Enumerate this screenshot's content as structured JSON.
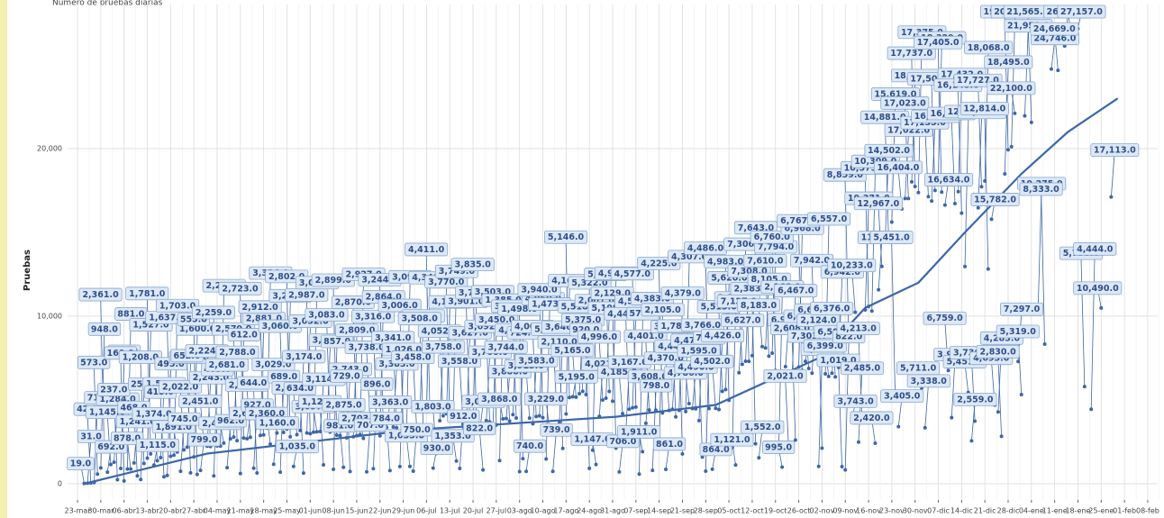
{
  "chart_data": {
    "type": "scatter",
    "subtitle": "Número de pruebas diarias",
    "y_label": "Pruebas",
    "color": "#3d67a8",
    "label_fill": "#dde8f6",
    "label_stroke": "#86a7d0",
    "label_color": "#2c4f8c",
    "grid": true,
    "xlim": [
      "20-mar",
      "11-feb"
    ],
    "ylim": [
      -970,
      28600
    ],
    "yticks": [
      {
        "value": 0,
        "label": "0"
      },
      {
        "value": 10000,
        "label": "10,000"
      },
      {
        "value": 20000,
        "label": "20,000"
      }
    ],
    "xticks": [
      "23-mar",
      "30-mar",
      "06-abr",
      "13-abr",
      "20-abr",
      "27-abr",
      "04-may",
      "11-may",
      "18-may",
      "25-may",
      "01-jun",
      "08-jun",
      "15-jun",
      "22-jun",
      "29-jun",
      "06-jul",
      "13-jul",
      "20-jul",
      "27-jul",
      "03-ago",
      "10-ago",
      "17-ago",
      "24-ago",
      "31-ago",
      "07-sep",
      "14-sep",
      "21-sep",
      "28-sep",
      "05-oct",
      "12-oct",
      "19-oct",
      "26-oct",
      "02-nov",
      "09-nov",
      "16-nov",
      "23-nov",
      "30-nov",
      "07-dic",
      "14-dic",
      "21-dic",
      "28-dic",
      "04-ene",
      "11-ene",
      "18-ene",
      "25-ene",
      "01-feb",
      "08-feb"
    ],
    "x": [
      "25-mar",
      "26-mar",
      "27-mar",
      "28-mar",
      "29-mar",
      "30-mar",
      "31-mar",
      "01-abr",
      "02-abr",
      "03-abr",
      "04-abr",
      "05-abr",
      "06-abr",
      "07-abr",
      "08-abr",
      "09-abr",
      "10-abr",
      "11-abr",
      "12-abr",
      "13-abr",
      "14-abr",
      "15-abr",
      "16-abr",
      "17-abr",
      "18-abr",
      "19-abr",
      "20-abr",
      "21-abr",
      "22-abr",
      "23-abr",
      "24-abr",
      "25-abr",
      "26-abr",
      "27-abr",
      "28-abr",
      "29-abr",
      "30-abr",
      "01-may",
      "02-may",
      "03-may",
      "04-may",
      "05-may",
      "06-may",
      "07-may",
      "08-may",
      "09-may",
      "10-may",
      "11-may",
      "12-may",
      "13-may",
      "14-may",
      "15-may",
      "16-may",
      "17-may",
      "18-may",
      "19-may",
      "20-may",
      "21-may",
      "22-may",
      "23-may",
      "24-may",
      "25-may",
      "26-may",
      "27-may",
      "28-may",
      "29-may",
      "30-may",
      "31-may",
      "01-jun",
      "02-jun",
      "03-jun",
      "04-jun",
      "05-jun",
      "06-jun",
      "07-jun",
      "08-jun",
      "09-jun",
      "10-jun",
      "11-jun",
      "12-jun",
      "13-jun",
      "14-jun",
      "15-jun",
      "16-jun",
      "17-jun",
      "18-jun",
      "19-jun",
      "20-jun",
      "21-jun",
      "22-jun",
      "23-jun",
      "24-jun",
      "25-jun",
      "26-jun",
      "27-jun",
      "28-jun",
      "29-jun",
      "30-jun",
      "01-jul",
      "02-jul",
      "03-jul",
      "04-jul",
      "05-jul",
      "06-jul",
      "07-jul",
      "08-jul",
      "09-jul",
      "10-jul",
      "11-jul",
      "12-jul",
      "13-jul",
      "14-jul",
      "15-jul",
      "16-jul",
      "17-jul",
      "18-jul",
      "19-jul",
      "20-jul",
      "21-jul",
      "22-jul",
      "23-jul",
      "24-jul",
      "25-jul",
      "26-jul",
      "27-jul",
      "28-jul",
      "29-jul",
      "30-jul",
      "31-jul",
      "01-ago",
      "02-ago",
      "03-ago",
      "04-ago",
      "05-ago",
      "06-ago",
      "07-ago",
      "08-ago",
      "09-ago",
      "10-ago",
      "11-ago",
      "12-ago",
      "13-ago",
      "14-ago",
      "15-ago",
      "16-ago",
      "17-ago",
      "18-ago",
      "19-ago",
      "20-ago",
      "21-ago",
      "22-ago",
      "23-ago",
      "24-ago",
      "25-ago",
      "26-ago",
      "27-ago",
      "28-ago",
      "29-ago",
      "30-ago",
      "31-ago",
      "01-sep",
      "02-sep",
      "03-sep",
      "04-sep",
      "05-sep",
      "06-sep",
      "07-sep",
      "08-sep",
      "09-sep",
      "10-sep",
      "11-sep",
      "12-sep",
      "13-sep",
      "14-sep",
      "15-sep",
      "16-sep",
      "17-sep",
      "18-sep",
      "19-sep",
      "20-sep",
      "21-sep",
      "22-sep",
      "23-sep",
      "24-sep",
      "25-sep",
      "26-sep",
      "27-sep",
      "28-sep",
      "29-sep",
      "30-sep",
      "01-oct",
      "02-oct",
      "03-oct",
      "04-oct",
      "05-oct",
      "06-oct",
      "07-oct",
      "08-oct",
      "09-oct",
      "10-oct",
      "11-oct",
      "12-oct",
      "13-oct",
      "14-oct",
      "15-oct",
      "16-oct",
      "17-oct",
      "18-oct",
      "19-oct",
      "20-oct",
      "21-oct",
      "22-oct",
      "23-oct",
      "24-oct",
      "25-oct",
      "26-oct",
      "27-oct",
      "28-oct",
      "29-oct",
      "30-oct",
      "31-oct",
      "01-nov",
      "02-nov",
      "03-nov",
      "04-nov",
      "05-nov",
      "06-nov",
      "07-nov",
      "08-nov",
      "09-nov",
      "10-nov",
      "11-nov",
      "12-nov",
      "13-nov",
      "14-nov",
      "15-nov",
      "16-nov",
      "17-nov",
      "18-nov",
      "19-nov",
      "20-nov",
      "21-nov",
      "22-nov",
      "23-nov",
      "24-nov",
      "25-nov",
      "26-nov",
      "27-nov",
      "28-nov",
      "29-nov",
      "30-nov",
      "01-dic",
      "02-dic",
      "03-dic",
      "04-dic",
      "05-dic",
      "06-dic",
      "07-dic",
      "08-dic",
      "09-dic",
      "10-dic",
      "11-dic",
      "12-dic",
      "13-dic",
      "14-dic",
      "15-dic",
      "16-dic",
      "17-dic",
      "18-dic",
      "19-dic",
      "20-dic",
      "21-dic",
      "22-dic",
      "23-dic",
      "24-dic",
      "25-dic",
      "26-dic",
      "27-dic",
      "28-dic",
      "29-dic",
      "30-dic",
      "31-dic",
      "01-ene",
      "02-ene",
      "04-ene",
      "06-ene",
      "08-ene",
      "10-ene",
      "12-ene",
      "14-ene",
      "16-ene",
      "18-ene",
      "20-ene",
      "22-ene",
      "25-ene",
      "28-ene"
    ],
    "values": [
      19,
      31,
      42,
      71,
      573,
      948,
      2361,
      692,
      1145,
      1284,
      237,
      912,
      169,
      881,
      878,
      1241,
      468,
      253,
      1208,
      1527,
      1781,
      1115,
      1374,
      1558,
      415,
      495,
      1637,
      1703,
      1891,
      745,
      2022,
      2179,
      652,
      1600,
      555,
      799,
      2451,
      2243,
      2224,
      469,
      2259,
      2248,
      2427,
      962,
      2681,
      2788,
      2570,
      612,
      2723,
      2686,
      2775,
      927,
      644,
      2881,
      2912,
      3324,
      2360,
      1160,
      3029,
      689,
      3060,
      3261,
      2802,
      1035,
      2929,
      3174,
      634,
      3032,
      2987,
      3075,
      3097,
      3114,
      1128,
      3189,
      3083,
      857,
      2899,
      2875,
      981,
      2743,
      729,
      2809,
      2870,
      2927,
      2703,
      707,
      3738,
      896,
      3316,
      2864,
      3244,
      3363,
      784,
      3383,
      3341,
      1026,
      3006,
      3099,
      1033,
      750,
      3458,
      4312,
      3508,
      4340,
      4411,
      930,
      1803,
      3758,
      4052,
      4180,
      3770,
      3749,
      1353,
      912,
      3558,
      3627,
      3901,
      3766,
      3835,
      3074,
      822,
      3760,
      3692,
      3450,
      3503,
      1385,
      3868,
      3888,
      3744,
      4123,
      3925,
      724,
      1498,
      740,
      3913,
      3583,
      4007,
      4050,
      3940,
      1473,
      3229,
      739,
      5138,
      3646,
      2110,
      4163,
      5146,
      5195,
      5165,
      5375,
      5518,
      5322,
      920,
      2001,
      1147,
      4021,
      4996,
      5108,
      5511,
      4926,
      2129,
      706,
      4185,
      3167,
      4444,
      4534,
      4577,
      579,
      1911,
      3608,
      4401,
      798,
      4383,
      2105,
      4225,
      861,
      4370,
      4445,
      3992,
      4379,
      1780,
      4307,
      4786,
      4490,
      4473,
      3766,
      1595,
      750,
      4486,
      864,
      4502,
      4426,
      5513,
      5620,
      4983,
      2162,
      1121,
      6627,
      7127,
      7308,
      7306,
      7643,
      2383,
      1552,
      8183,
      8105,
      7610,
      7794,
      6760,
      2168,
      995,
      6990,
      2021,
      6467,
      2608,
      6968,
      6767,
      7303,
      6881,
      6600,
      7942,
      1036,
      2124,
      6557,
      6399,
      6597,
      6376,
      6942,
      1019,
      822,
      8859,
      3743,
      10233,
      2485,
      4213,
      10371,
      10573,
      10309,
      2420,
      11576,
      12967,
      14502,
      14881,
      15619,
      5451,
      3405,
      16404,
      17022,
      17023,
      18015,
      17737,
      17375,
      5711,
      3338,
      17135,
      16872,
      17504,
      18329,
      17405,
      16634,
      6759,
      3943,
      16717,
      17432,
      16145,
      12961,
      5451,
      2559,
      3736,
      16464,
      17727,
      18068,
      12814,
      15782,
      4693,
      4283,
      2830,
      18495,
      19929,
      20112,
      22100,
      7297,
      5319,
      21951,
      21565,
      10275,
      8333,
      24746,
      24669,
      26126,
      26855,
      27157,
      5798,
      4444,
      10490,
      17113
    ],
    "value_labels": [
      "19.0",
      "31.0",
      "42.0",
      "71.0",
      "573.0",
      "948.0",
      "2,361.0",
      "692.0",
      "1,145.0",
      "1,284.0",
      "237.0",
      "912.0",
      "169.0",
      "881.0",
      "878.0",
      "1,241.0",
      "468.0",
      "253.0",
      "1,208.0",
      "1,527.0",
      "1,781.0",
      "1,115.0",
      "1,374.0",
      "1,558.0",
      "415.0",
      "495.0",
      "1,637.0",
      "1,703.0",
      "1,891.0",
      "745.0",
      "2,022.0",
      "2,179.0",
      "652.0",
      "1,600.0",
      "555.0",
      "799.0",
      "2,451.0",
      "2,243.0",
      "2,224.0",
      "469.0",
      "2,259.0",
      "2,248.0",
      "2,427.0",
      "962.0",
      "2,681.0",
      "2,788.0",
      "2,570.0",
      "612.0",
      "2,723.0",
      "2,686.0",
      "2,775.0",
      "927.0",
      "644.0",
      "2,881.0",
      "2,912.0",
      "3,324.0",
      "2,360.0",
      "1,160.0",
      "3,029.0",
      "689.0",
      "3,060.0",
      "3,261.0",
      "2,802.0",
      "1,035.0",
      "2,929.0",
      "3,174.0",
      "634.0",
      "3,032.0",
      "2,987.0",
      "3,075.0",
      "3,097.0",
      "3,114.0",
      "1,128.0",
      "3,189.0",
      "3,083.0",
      "857.0",
      "2,899.0",
      "2,875.0",
      "981.0",
      "2,743.0",
      "729.0",
      "2,809.0",
      "2,870.0",
      "2,927.0",
      "2,703.0",
      "707.0",
      "3,738.0",
      "896.0",
      "3,316.0",
      "2,864.0",
      "3,244.0",
      "3,363.0",
      "784.0",
      "3,383.0",
      "3,341.0",
      "1,026.0",
      "3,006.0",
      "3,099.0",
      "1,033.0",
      "750.0",
      "3,458.0",
      "4,312.0",
      "3,508.0",
      "4,340.0",
      "4,411.0",
      "930.0",
      "1,803.0",
      "3,758.0",
      "4,052.0",
      "4,180.0",
      "3,770.0",
      "3,749.0",
      "1,353.0",
      "912.0",
      "3,558.0",
      "3,627.0",
      "3,901.0",
      "3,766.0",
      "3,835.0",
      "3,074.0",
      "822.0",
      "3,760.0",
      "3,692.0",
      "3,450.0",
      "3,503.0",
      "1,385.0",
      "3,868.0",
      "3,888.0",
      "3,744.0",
      "4,123.0",
      "3,925.0",
      "724.0",
      "1,498.0",
      "740.0",
      "3,913.0",
      "3,583.0",
      "4,007.0",
      "4,050.0",
      "3,940.0",
      "1,473.0",
      "3,229.0",
      "739.0",
      "5,138.0",
      "3,646.0",
      "2,110.0",
      "4,163.0",
      "5,146.0",
      "5,195.0",
      "5,165.0",
      "5,375.0",
      "5,518.0",
      "5,322.0",
      "920.0",
      "2,001.0",
      "1,147.0",
      "4,021.0",
      "4,996.0",
      "5,108.0",
      "5,511.0",
      "4,926.0",
      "2,129.0",
      "706.0",
      "4,185.0",
      "3,167.0",
      "4,444.0",
      "4,534.0",
      "4,577.0",
      "579.0",
      "1,911.0",
      "3,608.0",
      "4,401.0",
      "798.0",
      "4,383.0",
      "2,105.0",
      "4,225.0",
      "861.0",
      "4,370.0",
      "4,445.0",
      "3,992.0",
      "4,379.0",
      "1,780.0",
      "4,307.0",
      "4,786.0",
      "4,490.0",
      "4,473.0",
      "3,766.0",
      "1,595.0",
      "750.0",
      "4,486.0",
      "864.0",
      "4,502.0",
      "4,426.0",
      "5,513.0",
      "5,620.0",
      "4,983.0",
      "2,162.0",
      "1,121.0",
      "6,627.0",
      "7,127.0",
      "7,308.0",
      "7,306.0",
      "7,643.0",
      "2,383.0",
      "1,552.0",
      "8,183.0",
      "8,105.0",
      "7,610.0",
      "7,794.0",
      "6,760.0",
      "2,168.0",
      "995.0",
      "6,990.0",
      "2,021.0",
      "6,467.0",
      "2,608.0",
      "6,968.0",
      "6,767.0",
      "7,303.0",
      "6,881.0",
      "6,600.0",
      "7,942.0",
      "1,036.0",
      "2,124.0",
      "6,557.0",
      "6,399.0",
      "6,597.0",
      "6,376.0",
      "6,942.0",
      "1,019.0",
      "822.0",
      "8,859.0",
      "3,743.0",
      "10,233.0",
      "2,485.0",
      "4,213.0",
      "10,371.0",
      "10,573.0",
      "10,309.0",
      "2,420.0",
      "11,576.0",
      "12,967.0",
      "14,502.0",
      "14,881.0",
      "15,619.0",
      "5,451.0",
      "3,405.0",
      "16,404.0",
      "17,022.0",
      "17,023.0",
      "18,015.0",
      "17,737.0",
      "17,375.0",
      "5,711.0",
      "3,338.0",
      "17,135.0",
      "16,872.0",
      "17,504.0",
      "18,329.0",
      "17,405.0",
      "16,634.0",
      "6,759.0",
      "3,943.0",
      "16,717.0",
      "17,432.0",
      "16,145.0",
      "12,961.0",
      "5,451.0",
      "2,559.0",
      "3,736.0",
      "16,464.0",
      "17,727.0",
      "18,068.0",
      "12,814.0",
      "15,782.0",
      "4,693.0",
      "4,283.0",
      "2,830.0",
      "18,495.0",
      "19,929.0",
      "20,112.0",
      "22,100.0",
      "7,297.0",
      "5,319.0",
      "21,951.0",
      "21,565.0",
      "10,275.0",
      "8,333.0",
      "24,746.0",
      "24,669.0",
      "26,126.0",
      "26,855.0",
      "27,157.0",
      "5,798.0",
      "4,444.0",
      "10,490.0",
      "17,113.0"
    ],
    "trend": {
      "color": "#3d67a8",
      "x": [
        "25-mar",
        "01-may",
        "01-jul",
        "01-sep",
        "01-oct",
        "01-nov",
        "15-nov",
        "01-dic",
        "15-dic",
        "01-ene",
        "15-ene",
        "30-ene"
      ],
      "values": [
        0,
        1800,
        3200,
        4000,
        4700,
        7500,
        10500,
        12000,
        15000,
        18500,
        21000,
        23000
      ]
    }
  }
}
